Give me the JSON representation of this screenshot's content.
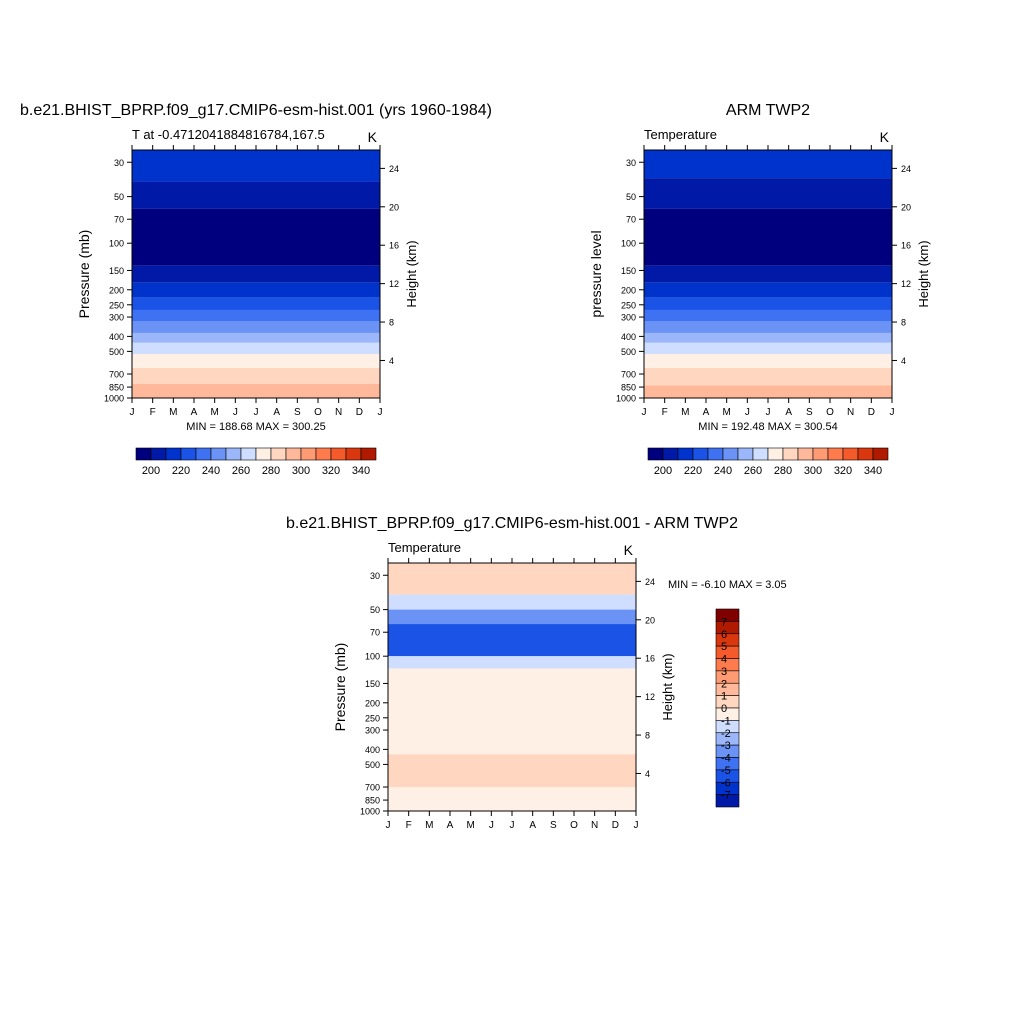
{
  "months": [
    "J",
    "F",
    "M",
    "A",
    "M",
    "J",
    "J",
    "A",
    "S",
    "O",
    "N",
    "D",
    "J"
  ],
  "pressure_ticks": [
    30,
    50,
    70,
    100,
    150,
    200,
    250,
    300,
    400,
    500,
    700,
    850,
    1000
  ],
  "height_ticks": [
    4,
    8,
    12,
    16,
    20,
    24
  ],
  "colors": {
    "abs": [
      "#00007f",
      "#0019a6",
      "#0033cc",
      "#1a53e6",
      "#3f72f2",
      "#6a93f5",
      "#9bb7fa",
      "#cfdeff",
      "#fff0e6",
      "#ffd6c0",
      "#ffb899",
      "#ff9a72",
      "#ff7a4d",
      "#f55a2a",
      "#d9380f",
      "#b01a00",
      "#800000"
    ],
    "diff": [
      "#00007f",
      "#0019a6",
      "#0033cc",
      "#1a53e6",
      "#3f72f2",
      "#6a93f5",
      "#9bb7fa",
      "#cfdeff",
      "#fff0e6",
      "#ffd6c0",
      "#ffb899",
      "#ff9a72",
      "#ff7a4d",
      "#f55a2a",
      "#d9380f",
      "#b01a00",
      "#800000"
    ]
  },
  "chart_data": [
    {
      "type": "heatmap",
      "title": "b.e21.BHIST_BPRP.f09_g17.CMIP6-esm-hist.001 (yrs 1960-1984)",
      "left_label": "T at -0.4712041884816784,167.5",
      "right_label": "K",
      "xlabel": "",
      "ylabel": "Pressure (mb)",
      "y2label": "Height (km)",
      "ylim": [
        1000,
        25
      ],
      "y_scale": "log",
      "stats": "MIN = 188.68 MAX = 300.25",
      "min": 188.68,
      "max": 300.25,
      "colorbar_levels": [
        200,
        220,
        240,
        260,
        280,
        300,
        320,
        340
      ],
      "colorbar_labels": [
        "200",
        "220",
        "240",
        "260",
        "280",
        "300",
        "320",
        "340"
      ],
      "colorbar_orientation": "horizontal",
      "bands": [
        {
          "p_top": 25,
          "p_bottom": 40,
          "color_index": 2
        },
        {
          "p_top": 40,
          "p_bottom": 60,
          "color_index": 1
        },
        {
          "p_top": 60,
          "p_bottom": 140,
          "color_index": 0
        },
        {
          "p_top": 140,
          "p_bottom": 180,
          "color_index": 1
        },
        {
          "p_top": 180,
          "p_bottom": 225,
          "color_index": 2
        },
        {
          "p_top": 225,
          "p_bottom": 270,
          "color_index": 3
        },
        {
          "p_top": 270,
          "p_bottom": 320,
          "color_index": 4
        },
        {
          "p_top": 320,
          "p_bottom": 380,
          "color_index": 5
        },
        {
          "p_top": 380,
          "p_bottom": 440,
          "color_index": 6
        },
        {
          "p_top": 440,
          "p_bottom": 520,
          "color_index": 7
        },
        {
          "p_top": 520,
          "p_bottom": 640,
          "color_index": 8
        },
        {
          "p_top": 640,
          "p_bottom": 810,
          "color_index": 9
        },
        {
          "p_top": 810,
          "p_bottom": 1000,
          "color_index": 10
        }
      ]
    },
    {
      "type": "heatmap",
      "title": "ARM TWP2",
      "left_label": "Temperature",
      "right_label": "K",
      "xlabel": "",
      "ylabel": "pressure level",
      "y2label": "Height (km)",
      "ylim": [
        1000,
        25
      ],
      "y_scale": "log",
      "stats": "MIN = 192.48 MAX = 300.54",
      "min": 192.48,
      "max": 300.54,
      "colorbar_levels": [
        200,
        220,
        240,
        260,
        280,
        300,
        320,
        340
      ],
      "colorbar_labels": [
        "200",
        "220",
        "240",
        "260",
        "280",
        "300",
        "320",
        "340"
      ],
      "colorbar_orientation": "horizontal",
      "bands": [
        {
          "p_top": 25,
          "p_bottom": 38,
          "color_index": 2
        },
        {
          "p_top": 38,
          "p_bottom": 60,
          "color_index": 1
        },
        {
          "p_top": 60,
          "p_bottom": 140,
          "color_index": 0
        },
        {
          "p_top": 140,
          "p_bottom": 180,
          "color_index": 1
        },
        {
          "p_top": 180,
          "p_bottom": 225,
          "color_index": 2
        },
        {
          "p_top": 225,
          "p_bottom": 270,
          "color_index": 3
        },
        {
          "p_top": 270,
          "p_bottom": 320,
          "color_index": 4
        },
        {
          "p_top": 320,
          "p_bottom": 380,
          "color_index": 5
        },
        {
          "p_top": 380,
          "p_bottom": 440,
          "color_index": 6
        },
        {
          "p_top": 440,
          "p_bottom": 520,
          "color_index": 7
        },
        {
          "p_top": 520,
          "p_bottom": 640,
          "color_index": 8
        },
        {
          "p_top": 640,
          "p_bottom": 830,
          "color_index": 9
        },
        {
          "p_top": 830,
          "p_bottom": 1000,
          "color_index": 10
        }
      ]
    },
    {
      "type": "heatmap",
      "title": "b.e21.BHIST_BPRP.f09_g17.CMIP6-esm-hist.001 - ARM TWP2",
      "left_label": "Temperature",
      "right_label": "K",
      "xlabel": "",
      "ylabel": "Pressure (mb)",
      "y2label": "Height (km)",
      "ylim": [
        1000,
        25
      ],
      "y_scale": "log",
      "stats": "MIN =  -6.10 MAX =   3.05",
      "min": -6.1,
      "max": 3.05,
      "colorbar_levels": [
        -7,
        -6,
        -5,
        -4,
        -3,
        -2,
        -1,
        0,
        1,
        2,
        3,
        4,
        5,
        6,
        7
      ],
      "colorbar_labels": [
        "7",
        "6",
        "5",
        "4",
        "3",
        "2",
        "1",
        "0",
        "-1",
        "-2",
        "-3",
        "-4",
        "-5",
        "-6",
        "-7"
      ],
      "colorbar_orientation": "vertical",
      "bands": [
        {
          "p_top": 25,
          "p_bottom": 40,
          "color_index": 9
        },
        {
          "p_top": 40,
          "p_bottom": 50,
          "color_index": 7
        },
        {
          "p_top": 50,
          "p_bottom": 62,
          "color_index": 5
        },
        {
          "p_top": 62,
          "p_bottom": 100,
          "color_index": 3
        },
        {
          "p_top": 100,
          "p_bottom": 120,
          "color_index": 7
        },
        {
          "p_top": 120,
          "p_bottom": 430,
          "color_index": 8
        },
        {
          "p_top": 430,
          "p_bottom": 700,
          "color_index": 9
        },
        {
          "p_top": 700,
          "p_bottom": 1000,
          "color_index": 8
        }
      ]
    }
  ]
}
